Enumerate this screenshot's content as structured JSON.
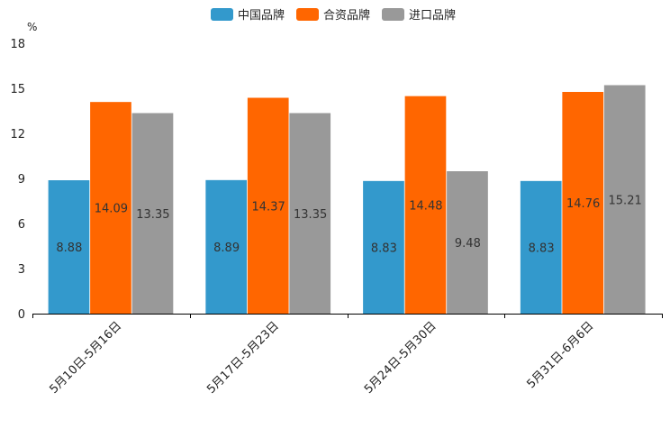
{
  "chart_data": {
    "type": "bar",
    "unit_label": "%",
    "categories": [
      "5月10日-5月16日",
      "5月17日-5月23日",
      "5月24日-5月30日",
      "5月31日-6月6日"
    ],
    "series": [
      {
        "name": "中国品牌",
        "color": "#3399cc",
        "values": [
          8.88,
          8.89,
          8.83,
          8.83
        ]
      },
      {
        "name": "合资品牌",
        "color": "#ff6600",
        "values": [
          14.09,
          14.37,
          14.48,
          14.76
        ]
      },
      {
        "name": "进口品牌",
        "color": "#999999",
        "values": [
          13.35,
          13.35,
          9.48,
          15.21
        ]
      }
    ],
    "y_ticks": [
      0,
      3,
      6,
      9,
      12,
      15,
      18
    ],
    "ylim": [
      0,
      18
    ],
    "legend_position": "top-center",
    "grid": false
  }
}
